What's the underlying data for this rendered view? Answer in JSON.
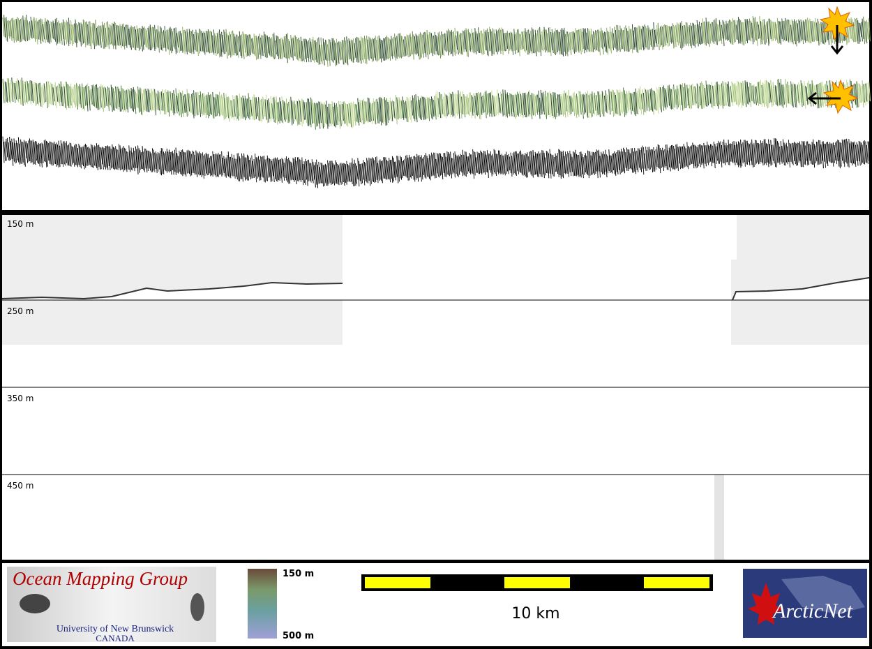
{
  "depth_labels": [
    "150 m",
    "250 m",
    "350 m",
    "450 m"
  ],
  "color_legend": {
    "top": "150 m",
    "bottom": "500 m"
  },
  "scale_bar": {
    "label": "10 km"
  },
  "logo_left": {
    "title": "Ocean Mapping Group",
    "line1": "University of New Brunswick",
    "line2": "CANADA"
  },
  "logo_right": {
    "title": "ArcticNet"
  }
}
